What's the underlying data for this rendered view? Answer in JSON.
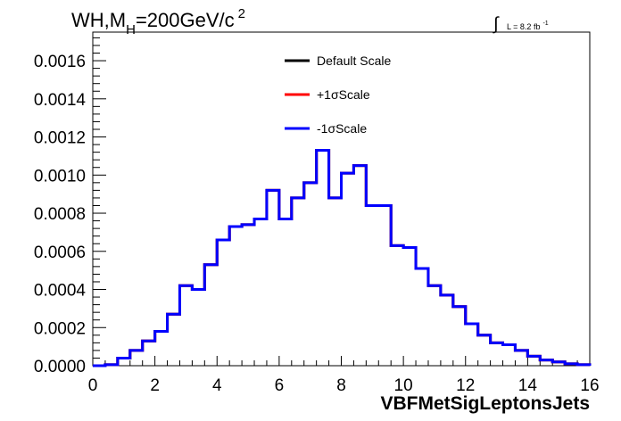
{
  "header": {
    "title_main": "WH,M",
    "title_sub": "H",
    "title_rest": "=200GeV/c",
    "title_sup": "2",
    "lumi_text": "L = 8.2 fb",
    "lumi_sup": "-1"
  },
  "chart_data": {
    "type": "line",
    "style": "step-histogram",
    "xlabel": "VBFMetSigLeptonsJets",
    "ylabel": "",
    "xlim": [
      0,
      16
    ],
    "ylim": [
      0,
      0.00175
    ],
    "x_ticks": [
      "0",
      "2",
      "4",
      "6",
      "8",
      "10",
      "12",
      "14",
      "16"
    ],
    "y_ticks": [
      "0.0000",
      "0.0002",
      "0.0004",
      "0.0006",
      "0.0008",
      "0.0010",
      "0.0012",
      "0.0014",
      "0.0016"
    ],
    "grid": false,
    "legend_position": "top-center",
    "bin_edges": [
      0,
      0.4,
      0.8,
      1.2,
      1.6,
      2.0,
      2.4,
      2.8,
      3.2,
      3.6,
      4.0,
      4.4,
      4.8,
      5.2,
      5.6,
      6.0,
      6.4,
      6.8,
      7.2,
      7.6,
      8.0,
      8.4,
      8.8,
      9.2,
      9.6,
      10.0,
      10.4,
      10.8,
      11.2,
      11.6,
      12.0,
      12.4,
      12.8,
      13.2,
      13.6,
      14.0,
      14.4,
      14.8,
      15.2,
      15.6,
      16.0
    ],
    "series": [
      {
        "name": "Default Scale",
        "color": "#000000",
        "values": [
          0.0,
          5e-06,
          4e-05,
          8e-05,
          0.00013,
          0.00018,
          0.00027,
          0.00042,
          0.0004,
          0.00053,
          0.00066,
          0.00073,
          0.00074,
          0.00077,
          0.00092,
          0.00077,
          0.00088,
          0.00096,
          0.00113,
          0.00088,
          0.00101,
          0.00105,
          0.00084,
          0.00084,
          0.00063,
          0.00062,
          0.00051,
          0.00042,
          0.00037,
          0.00031,
          0.00022,
          0.00016,
          0.00012,
          0.00011,
          8e-05,
          5e-05,
          3e-05,
          2e-05,
          1e-05,
          5e-06
        ]
      },
      {
        "name": "+1σScale",
        "color": "#ff0000",
        "values": [
          0.0,
          5e-06,
          4e-05,
          8e-05,
          0.00013,
          0.00018,
          0.00027,
          0.00042,
          0.0004,
          0.00053,
          0.00066,
          0.00073,
          0.00074,
          0.00077,
          0.00092,
          0.00077,
          0.00088,
          0.00096,
          0.00113,
          0.00088,
          0.00101,
          0.00105,
          0.00084,
          0.00084,
          0.00063,
          0.00062,
          0.00051,
          0.00042,
          0.00037,
          0.00031,
          0.00022,
          0.00016,
          0.00012,
          0.00011,
          8e-05,
          5e-05,
          3e-05,
          2e-05,
          1e-05,
          5e-06
        ]
      },
      {
        "name": "-1σScale",
        "color": "#0000ff",
        "values": [
          0.0,
          5e-06,
          4e-05,
          8e-05,
          0.00013,
          0.00018,
          0.00027,
          0.00042,
          0.0004,
          0.00053,
          0.00066,
          0.00073,
          0.00074,
          0.00077,
          0.00092,
          0.00077,
          0.00088,
          0.00096,
          0.00113,
          0.00088,
          0.00101,
          0.00105,
          0.00084,
          0.00084,
          0.00063,
          0.00062,
          0.00051,
          0.00042,
          0.00037,
          0.00031,
          0.00022,
          0.00016,
          0.00012,
          0.00011,
          8e-05,
          5e-05,
          3e-05,
          2e-05,
          1e-05,
          5e-06
        ]
      }
    ]
  }
}
